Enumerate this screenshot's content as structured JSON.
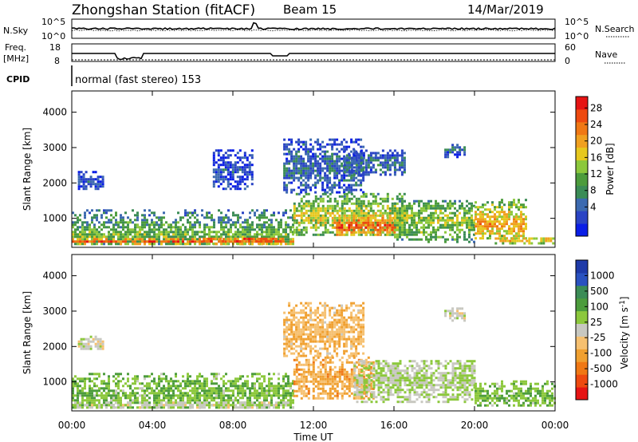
{
  "header": {
    "station": "Zhongshan Station (fitACF)",
    "beam": "Beam 15",
    "date": "14/Mar/2019"
  },
  "noise_panel": {
    "left_label": "N.Sky",
    "right_label": "N.Search",
    "ticks_left": [
      "10^5",
      "10^0"
    ],
    "ticks_right": [
      "10^5",
      "10^0"
    ]
  },
  "freq_panel": {
    "left_label_line1": "Freq.",
    "left_label_line2": "[MHz]",
    "right_label": "Nave",
    "ticks_left": [
      "18",
      "8"
    ],
    "ticks_right": [
      "60",
      "0"
    ]
  },
  "cpid": {
    "label": "CPID",
    "text": "normal (fast stereo) 153"
  },
  "colors": {
    "power": [
      "#0a1ee6",
      "#2a44c4",
      "#3c6ab0",
      "#3b8c56",
      "#4c9c3c",
      "#8cc83c",
      "#e6c81e",
      "#f0a020",
      "#f07814",
      "#ee4a10",
      "#e61414"
    ],
    "velocity": [
      "#e61414",
      "#ee4a10",
      "#f07814",
      "#f0a030",
      "#f6c070",
      "#c8c8c0",
      "#8cc83c",
      "#4c9c3c",
      "#3b8c56",
      "#2a52c0",
      "#1e3aa8"
    ]
  },
  "chart_data": [
    {
      "type": "heatmap",
      "name": "power",
      "ylabel": "Slant Range [km]",
      "xlim": [
        "00:00",
        "24:00"
      ],
      "ylim": [
        180,
        4600
      ],
      "yticks": [
        1000,
        2000,
        3000,
        4000
      ],
      "colorbar": {
        "label": "Power [dB]",
        "range": [
          0,
          31
        ],
        "ticks": [
          "4",
          "8",
          "12",
          "16",
          "20",
          "24",
          "28"
        ]
      },
      "regions": [
        {
          "t": [
            0.0,
            11.0
          ],
          "r": [
            240,
            1250
          ],
          "peak_r": 500,
          "level": 14
        },
        {
          "t": [
            0.0,
            11.0
          ],
          "r": [
            240,
            420
          ],
          "peak_r": 320,
          "level": 26
        },
        {
          "t": [
            6.5,
            10.5
          ],
          "r": [
            250,
            450
          ],
          "peak_r": 350,
          "level": 28
        },
        {
          "t": [
            0.3,
            1.5
          ],
          "r": [
            1800,
            2300
          ],
          "peak_r": 2000,
          "level": 5
        },
        {
          "t": [
            7.0,
            9.0
          ],
          "r": [
            1800,
            2900
          ],
          "peak_r": 2300,
          "level": 5
        },
        {
          "t": [
            10.5,
            14.5
          ],
          "r": [
            1700,
            3200
          ],
          "peak_r": 2400,
          "level": 7
        },
        {
          "t": [
            11.0,
            16.5
          ],
          "r": [
            500,
            1700
          ],
          "peak_r": 1000,
          "level": 18
        },
        {
          "t": [
            13.0,
            16.0
          ],
          "r": [
            500,
            1100
          ],
          "peak_r": 750,
          "level": 27
        },
        {
          "t": [
            13.5,
            16.5
          ],
          "r": [
            2200,
            2900
          ],
          "peak_r": 2500,
          "level": 8
        },
        {
          "t": [
            16.0,
            20.0
          ],
          "r": [
            300,
            1500
          ],
          "peak_r": 900,
          "level": 16
        },
        {
          "t": [
            18.5,
            19.5
          ],
          "r": [
            2700,
            3100
          ],
          "peak_r": 2900,
          "level": 7
        },
        {
          "t": [
            20.0,
            22.5
          ],
          "r": [
            400,
            1500
          ],
          "peak_r": 800,
          "level": 22
        },
        {
          "t": [
            21.0,
            24.0
          ],
          "r": [
            260,
            450
          ],
          "peak_r": 350,
          "level": 22
        }
      ]
    },
    {
      "type": "heatmap",
      "name": "velocity",
      "ylabel": "Slant Range [km]",
      "xlabel": "Time UT",
      "xlim": [
        "00:00",
        "24:00"
      ],
      "ylim": [
        180,
        4600
      ],
      "yticks": [
        1000,
        2000,
        3000,
        4000
      ],
      "xticks": [
        "00:00",
        "04:00",
        "08:00",
        "12:00",
        "16:00",
        "20:00",
        "00:00"
      ],
      "colorbar": {
        "label": "Velocity [m s^-1]",
        "range": [
          -1250,
          1250
        ],
        "ticks": [
          "1000",
          "500",
          "100",
          "25",
          "-25",
          "-100",
          "-500",
          "-1000"
        ]
      },
      "regions": [
        {
          "t": [
            0.0,
            11.0
          ],
          "r": [
            240,
            1200
          ],
          "peak_r": 600,
          "level": 300
        },
        {
          "t": [
            0.0,
            11.0
          ],
          "r": [
            240,
            400
          ],
          "peak_r": 300,
          "level": 60
        },
        {
          "t": [
            0.3,
            1.5
          ],
          "r": [
            1900,
            2300
          ],
          "peak_r": 2000,
          "level": 0
        },
        {
          "t": [
            10.5,
            14.5
          ],
          "r": [
            1700,
            3200
          ],
          "peak_r": 2400,
          "level": -300
        },
        {
          "t": [
            11.0,
            15.0
          ],
          "r": [
            500,
            1700
          ],
          "peak_r": 1000,
          "level": -400
        },
        {
          "t": [
            14.0,
            20.0
          ],
          "r": [
            400,
            1600
          ],
          "peak_r": 1000,
          "level": 120
        },
        {
          "t": [
            18.5,
            19.5
          ],
          "r": [
            2700,
            3100
          ],
          "peak_r": 2900,
          "level": 0
        },
        {
          "t": [
            20.0,
            24.0
          ],
          "r": [
            300,
            1000
          ],
          "peak_r": 500,
          "level": 300
        }
      ]
    }
  ]
}
